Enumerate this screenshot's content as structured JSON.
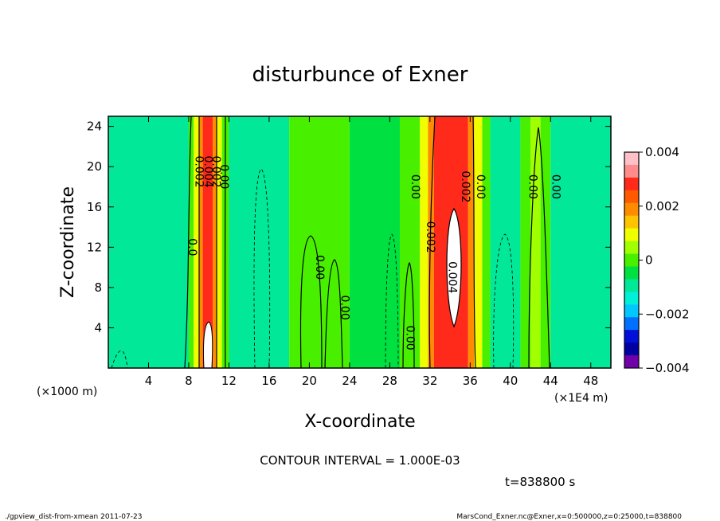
{
  "chart_data": {
    "type": "heatmap",
    "title": "disturbunce of Exner",
    "xlabel": "X-coordinate",
    "ylabel": "Z-coordinate",
    "x_unit_label": "(×1000 m)",
    "x_scale_label": "(×1E4 m)",
    "xlim": [
      0,
      50
    ],
    "ylim": [
      0,
      25
    ],
    "x_ticks": [
      4,
      8,
      12,
      16,
      20,
      24,
      28,
      32,
      36,
      40,
      44,
      48
    ],
    "y_ticks": [
      4,
      8,
      12,
      16,
      20,
      24
    ],
    "colorbar": {
      "min": -0.004,
      "max": 0.004,
      "tick_values": [
        0.004,
        0.002,
        0,
        -0.002,
        -0.004
      ],
      "tick_labels": [
        "0.004",
        "0.002",
        "0",
        "−0.002",
        "−0.004"
      ],
      "colors": [
        "#ffc0c8",
        "#ff8c8c",
        "#ff2a1a",
        "#ff5a00",
        "#ff8c00",
        "#ffc400",
        "#f0ff00",
        "#a0ff00",
        "#48f000",
        "#00e040",
        "#00e898",
        "#00f0d8",
        "#00c8ff",
        "#0070ff",
        "#0010d8",
        "#0000a0",
        "#7000a8"
      ]
    },
    "columns": [
      {
        "x_min": 0.0,
        "x_max": 8.0,
        "color": "#00e898"
      },
      {
        "x_min": 8.0,
        "x_max": 8.5,
        "color": "#48f000"
      },
      {
        "x_min": 8.5,
        "x_max": 9.0,
        "color": "#f0ff00"
      },
      {
        "x_min": 9.0,
        "x_max": 9.4,
        "color": "#ff8c00"
      },
      {
        "x_min": 9.4,
        "x_max": 10.4,
        "color": "#ff2a1a"
      },
      {
        "x_min": 10.4,
        "x_max": 10.8,
        "color": "#ff8c00"
      },
      {
        "x_min": 10.8,
        "x_max": 11.3,
        "color": "#f0ff00"
      },
      {
        "x_min": 11.3,
        "x_max": 12.0,
        "color": "#48f000"
      },
      {
        "x_min": 12.0,
        "x_max": 18.0,
        "color": "#00e898"
      },
      {
        "x_min": 18.0,
        "x_max": 24.0,
        "color": "#48f000"
      },
      {
        "x_min": 24.0,
        "x_max": 29.0,
        "color": "#00e040"
      },
      {
        "x_min": 29.0,
        "x_max": 31.0,
        "color": "#48f000"
      },
      {
        "x_min": 31.0,
        "x_max": 31.8,
        "color": "#f0ff00"
      },
      {
        "x_min": 31.8,
        "x_max": 32.4,
        "color": "#ff8c00"
      },
      {
        "x_min": 32.4,
        "x_max": 35.8,
        "color": "#ff2a1a"
      },
      {
        "x_min": 35.8,
        "x_max": 36.4,
        "color": "#ff8c00"
      },
      {
        "x_min": 36.4,
        "x_max": 37.2,
        "color": "#f0ff00"
      },
      {
        "x_min": 37.2,
        "x_max": 38.0,
        "color": "#48f000"
      },
      {
        "x_min": 38.0,
        "x_max": 41.0,
        "color": "#00e898"
      },
      {
        "x_min": 41.0,
        "x_max": 42.0,
        "color": "#48f000"
      },
      {
        "x_min": 42.0,
        "x_max": 43.0,
        "color": "#a0ff00"
      },
      {
        "x_min": 43.0,
        "x_max": 44.0,
        "color": "#48f000"
      },
      {
        "x_min": 44.0,
        "x_max": 50.0,
        "color": "#00e898"
      }
    ],
    "contour_labels": [
      {
        "text": "0.002",
        "x": 9.0,
        "z": 19.5
      },
      {
        "text": "0.004",
        "x": 9.9,
        "z": 19.5
      },
      {
        "text": "0.002",
        "x": 10.7,
        "z": 19.5
      },
      {
        "text": "0.00",
        "x": 11.5,
        "z": 19.0
      },
      {
        "text": "0.0",
        "x": 8.3,
        "z": 12.0
      },
      {
        "text": "0.00",
        "x": 30.5,
        "z": 18.0
      },
      {
        "text": "0.002",
        "x": 35.5,
        "z": 18.0
      },
      {
        "text": "0.00",
        "x": 37.0,
        "z": 18.0
      },
      {
        "text": "0.00",
        "x": 42.2,
        "z": 18.0
      },
      {
        "text": "0.00",
        "x": 44.5,
        "z": 18.0
      },
      {
        "text": "0.002",
        "x": 32.0,
        "z": 13.0
      },
      {
        "text": "0.004",
        "x": 34.2,
        "z": 9.0
      },
      {
        "text": "0.00",
        "x": 21.0,
        "z": 10.0
      },
      {
        "text": "0.00",
        "x": 23.5,
        "z": 6.0
      },
      {
        "text": "0.00",
        "x": 30.0,
        "z": 3.0
      }
    ],
    "contour_interval_text": "CONTOUR INTERVAL = 1.000E-03",
    "time_text": "t=838800 s"
  },
  "footer": {
    "left": "./gpview_dist-from-xmean  2011-07-23",
    "right": "MarsCond_Exner.nc@Exner,x=0:500000,z=0:25000,t=838800"
  }
}
